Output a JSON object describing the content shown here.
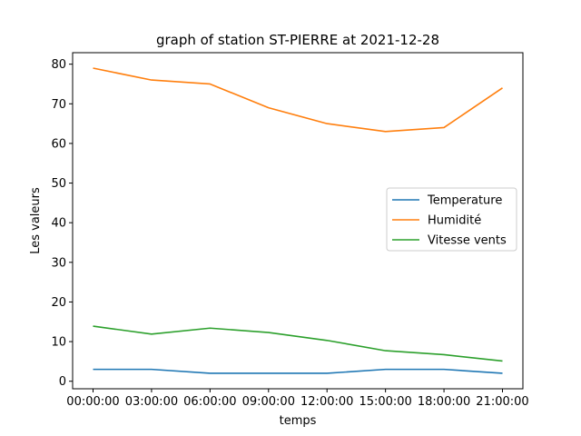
{
  "chart_data": {
    "type": "line",
    "title": "graph of station ST-PIERRE at 2021-12-28",
    "xlabel": "temps",
    "ylabel": "Les valeurs",
    "categories": [
      "00:00:00",
      "03:00:00",
      "06:00:00",
      "09:00:00",
      "12:00:00",
      "15:00:00",
      "18:00:00",
      "21:00:00"
    ],
    "ylim": [
      -1.9,
      82.9
    ],
    "yticks": [
      0,
      10,
      20,
      30,
      40,
      50,
      60,
      70,
      80
    ],
    "grid": false,
    "legend_position": "center-right",
    "series": [
      {
        "name": "Temperature",
        "color": "#1f77b4",
        "values": [
          3,
          3,
          2,
          2,
          2,
          3,
          3,
          2
        ]
      },
      {
        "name": "Humidité",
        "color": "#ff7f0e",
        "values": [
          79,
          76,
          75,
          69,
          65,
          63,
          64,
          74
        ]
      },
      {
        "name": "Vitesse vents",
        "color": "#2ca02c",
        "values": [
          13.9,
          11.9,
          13.4,
          12.3,
          10.3,
          7.7,
          6.7,
          5.1
        ]
      }
    ]
  }
}
